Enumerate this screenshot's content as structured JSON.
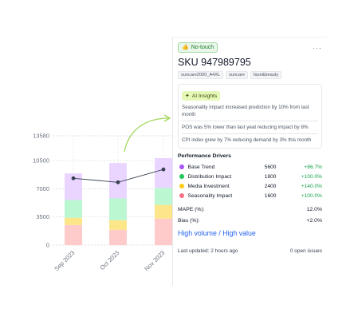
{
  "card": {
    "badge_label": "No-touch",
    "more_label": "···",
    "sku_title": "SKU 947989795",
    "tags": [
      "suncare2000_A4XL",
      "suncare",
      "face&beauty"
    ],
    "insights_label": "AI Insights",
    "insights": [
      "Seasonality impact increased prediction by 10% from last month",
      "POS was 5% lower than last yeat reducing impact by 8%",
      "CPI index grew by 7% reducing demand by 3% this month"
    ],
    "drivers_title": "Performance Drivers",
    "drivers": [
      {
        "name": "Base Trend",
        "value": "5600",
        "pct": "+86.7%",
        "color": "#a855f7"
      },
      {
        "name": "Distribution Impact",
        "value": "1800",
        "pct": "+100.0%",
        "color": "#22c55e"
      },
      {
        "name": "Media Investment",
        "value": "2400",
        "pct": "+140.0%",
        "color": "#facc15"
      },
      {
        "name": "Seasonality Impact",
        "value": "1600",
        "pct": "+100.0%",
        "color": "#fb7185"
      }
    ],
    "mape_label": "MAPE (%):",
    "mape_value": "12.0%",
    "bias_label": "Bias (%):",
    "bias_value": "+2.0%",
    "volume_link": "High volume / High value",
    "updated": "Last updated: 2 hours ago",
    "open_issues": "0 open issues"
  },
  "chart_data": {
    "type": "bar",
    "stacked": true,
    "categories": [
      "Sep 2023",
      "Oct 2023",
      "Nov 2023"
    ],
    "yticks": [
      "13580",
      "10500",
      "7000",
      "3500",
      "0"
    ],
    "ylim": [
      0,
      13580
    ],
    "series": [
      {
        "values": [
          2500,
          1900,
          3300
        ],
        "color": "#fecaca"
      },
      {
        "values": [
          900,
          1200,
          1700
        ],
        "color": "#fde68a"
      },
      {
        "values": [
          2200,
          2700,
          2100
        ],
        "color": "#bbf7d0"
      },
      {
        "values": [
          3300,
          4400,
          3700
        ],
        "color": "#e9d5ff"
      }
    ],
    "line": {
      "values": [
        8300,
        7800,
        9400
      ],
      "color": "#374151"
    },
    "arrow_color": "#a3d65a"
  }
}
